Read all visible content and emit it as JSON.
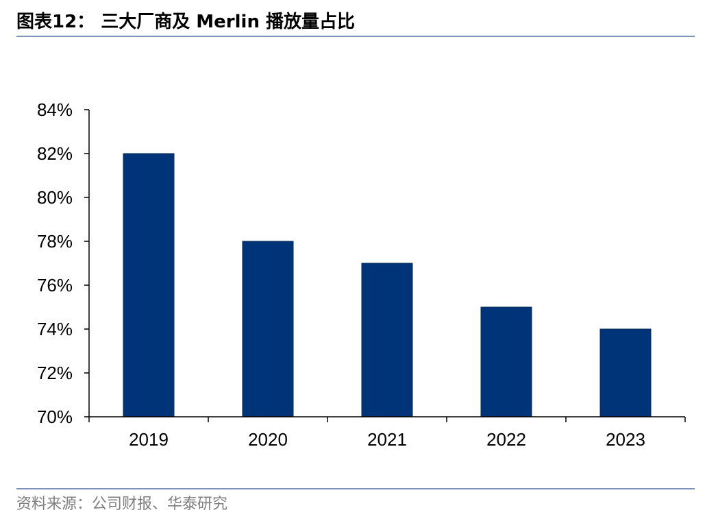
{
  "header": {
    "title": "图表12：  三大厂商及 Merlin  播放量占比"
  },
  "footer": {
    "source": "资料来源：公司财报、华泰研究"
  },
  "colors": {
    "bar": "#003478",
    "rule": "#7f93b8",
    "source_text": "#7f7f7f"
  },
  "chart_data": {
    "type": "bar",
    "categories": [
      "2019",
      "2020",
      "2021",
      "2022",
      "2023"
    ],
    "values": [
      82,
      78,
      77,
      75,
      74
    ],
    "unit": "%",
    "ylim": [
      70,
      84
    ],
    "yticks": [
      70,
      72,
      74,
      76,
      78,
      80,
      82,
      84
    ],
    "ytick_labels": [
      "70%",
      "72%",
      "74%",
      "76%",
      "78%",
      "80%",
      "82%",
      "84%"
    ],
    "grid": false,
    "legend": "none"
  }
}
